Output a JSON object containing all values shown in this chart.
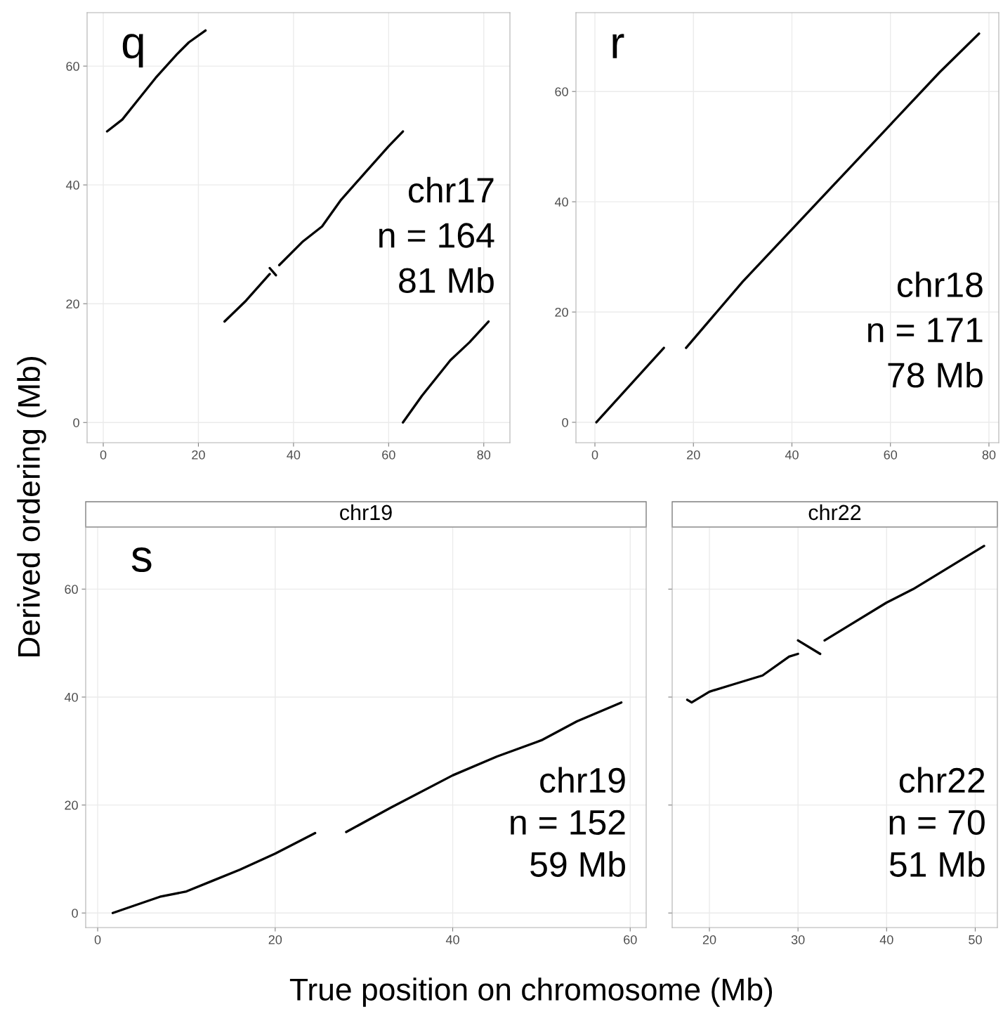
{
  "chart_data": [
    {
      "type": "line",
      "xlim": [
        -3.4,
        85.5
      ],
      "ylim": [
        -3.4,
        69.0
      ],
      "xticks": [
        0,
        20,
        40,
        60,
        80
      ],
      "yticks": [
        0,
        20,
        40,
        60
      ],
      "grid": true,
      "ylabel": "Derived ordering (Mb)",
      "annotations": [
        "q",
        "chr17",
        "n = 164",
        "81 Mb"
      ],
      "series": [
        {
          "color": "#000000",
          "x": [
            0.8,
            4,
            7,
            11,
            15.5,
            18,
            21.5,
            null,
            25.5,
            30,
            35,
            null,
            35,
            36.3,
            null,
            37,
            42,
            46,
            50,
            55,
            60,
            63,
            null,
            63,
            67,
            73,
            77,
            81
          ],
          "values": [
            49,
            51,
            54,
            58,
            62,
            64,
            66,
            null,
            17,
            20.5,
            25,
            null,
            26,
            24.8,
            null,
            26.5,
            30.5,
            33,
            37.5,
            42,
            46.5,
            49,
            null,
            0,
            4.5,
            10.5,
            13.5,
            17
          ]
        }
      ]
    },
    {
      "type": "line",
      "xlim": [
        -3.85,
        82
      ],
      "ylim": [
        -3.7,
        74.3
      ],
      "xticks": [
        0,
        20,
        40,
        60,
        80
      ],
      "yticks": [
        0,
        20,
        40,
        60
      ],
      "grid": true,
      "annotations": [
        "r",
        "chr18",
        "n = 171",
        "78 Mb"
      ],
      "series": [
        {
          "color": "#000000",
          "x": [
            0.3,
            14,
            null,
            18.5,
            30,
            40,
            50,
            60,
            70,
            78
          ],
          "values": [
            0,
            13.5,
            null,
            13.5,
            25.5,
            35,
            44.5,
            54,
            63.5,
            70.5
          ]
        }
      ]
    },
    {
      "type": "line",
      "title": "chr19",
      "xlim": [
        -1.35,
        61.8
      ],
      "ylim": [
        -2.7,
        71.5
      ],
      "xticks": [
        0,
        20,
        40,
        60
      ],
      "yticks": [
        0,
        20,
        40,
        60
      ],
      "grid": true,
      "xlabel": "True position on chromosome (Mb)",
      "annotations": [
        "s",
        "chr19",
        "n = 152",
        "59 Mb"
      ],
      "series": [
        {
          "color": "#000000",
          "x": [
            1.7,
            4,
            7,
            10,
            13,
            16,
            20,
            24.5,
            null,
            28,
            33,
            40,
            45,
            50,
            54,
            59
          ],
          "values": [
            0,
            1.3,
            3,
            4,
            6,
            8,
            11,
            14.8,
            null,
            15,
            19.5,
            25.5,
            29,
            32,
            35.5,
            39
          ]
        }
      ]
    },
    {
      "type": "line",
      "title": "chr22",
      "xlim": [
        15.8,
        52.5
      ],
      "ylim": [
        -2.7,
        71.5
      ],
      "xticks": [
        20,
        30,
        40,
        50
      ],
      "yticks": [
        0,
        20,
        40,
        60
      ],
      "grid": true,
      "tick_labels": "x",
      "annotations": [
        "chr22",
        "n = 70",
        "51 Mb"
      ],
      "series": [
        {
          "color": "#000000",
          "x": [
            17.5,
            18,
            20,
            23,
            26,
            29,
            30,
            null,
            30,
            32.5,
            null,
            33,
            35.5,
            40,
            43,
            51
          ],
          "values": [
            39.5,
            39,
            41,
            42.5,
            44,
            47.5,
            48,
            null,
            50.5,
            48,
            null,
            50.5,
            53,
            57.5,
            60,
            68
          ]
        }
      ]
    }
  ]
}
